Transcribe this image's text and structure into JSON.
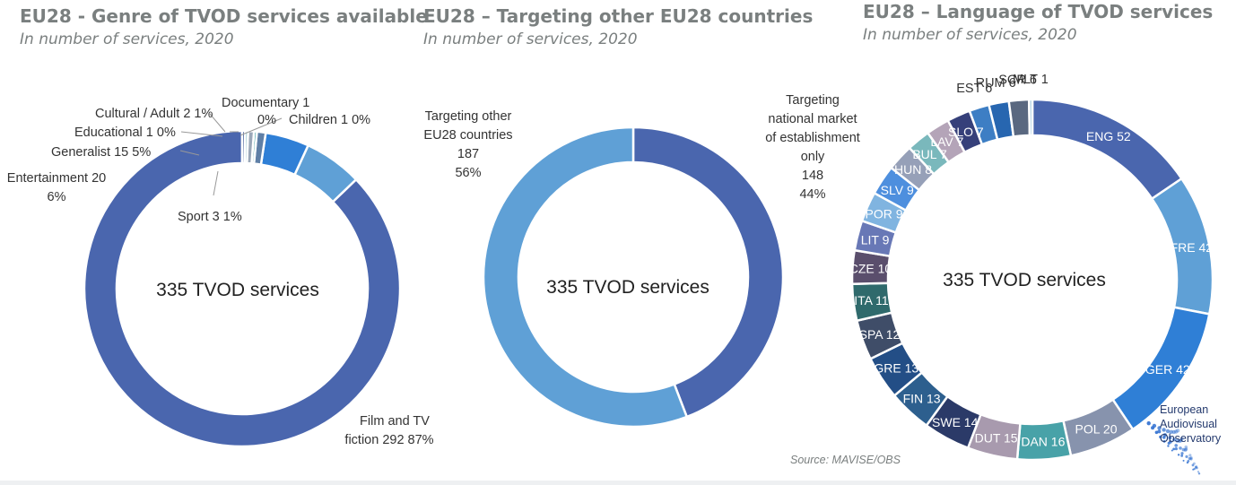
{
  "charts": [
    {
      "title": "EU28 - Genre of TVOD services available",
      "subtitle": "In number of services, 2020",
      "center_label": "335 TVOD services",
      "labels": [
        "Film and TV",
        "fiction 292 87%",
        "Entertainment 20",
        "6%",
        "Generalist 15 5%",
        "Educational 1 0%",
        "Cultural / Adult 2 1%",
        "Documentary 1",
        "0%",
        "Children 1 0%",
        "Sport 3 1%"
      ]
    },
    {
      "title": "EU28 – Targeting other EU28 countries",
      "subtitle": "In number of services, 2020",
      "center_label": "335 TVOD services",
      "labels": [
        "Targeting other",
        "EU28 countries",
        "187",
        "56%",
        "Targeting",
        "national market",
        "of establishment",
        "only",
        "148",
        "44%"
      ]
    },
    {
      "title": "EU28 – Language of TVOD services",
      "subtitle": "In number of services, 2020",
      "center_label": "335 TVOD services"
    }
  ],
  "source": "Source: MAVISE/OBS",
  "logo": {
    "line1": "European",
    "line2": "Audiovisual",
    "line3": "Observatory"
  },
  "chart_data": [
    {
      "type": "pie",
      "title": "EU28 - Genre of TVOD services available",
      "subtitle": "In number of services, 2020",
      "total_label": "335 TVOD services",
      "slices": [
        {
          "name": "Film and TV fiction",
          "value": 292,
          "percent": 87,
          "color": "#4a66ae"
        },
        {
          "name": "Entertainment",
          "value": 20,
          "percent": 6,
          "color": "#5fa0d6"
        },
        {
          "name": "Generalist",
          "value": 15,
          "percent": 5,
          "color": "#2f7fd6"
        },
        {
          "name": "Sport",
          "value": 3,
          "percent": 1,
          "color": "#5f7fa6"
        },
        {
          "name": "Educational",
          "value": 1,
          "percent": 0,
          "color": "#4ba3a8"
        },
        {
          "name": "Cultural / Adult",
          "value": 2,
          "percent": 1,
          "color": "#9aa7b8"
        },
        {
          "name": "Documentary",
          "value": 1,
          "percent": 0,
          "color": "#7fb8c0"
        },
        {
          "name": "Children",
          "value": 1,
          "percent": 0,
          "color": "#2c4a8c"
        }
      ]
    },
    {
      "type": "pie",
      "title": "EU28 – Targeting other EU28 countries",
      "subtitle": "In number of services, 2020",
      "total_label": "335 TVOD services",
      "slices": [
        {
          "name": "Targeting national market of establishment only",
          "value": 148,
          "percent": 44,
          "color": "#4a66ae"
        },
        {
          "name": "Targeting other EU28 countries",
          "value": 187,
          "percent": 56,
          "color": "#5fa0d6"
        }
      ]
    },
    {
      "type": "pie",
      "title": "EU28 – Language of TVOD services",
      "subtitle": "In number of services, 2020",
      "total_label": "335 TVOD services",
      "slices": [
        {
          "name": "ENG",
          "value": 52,
          "color": "#4a66ae"
        },
        {
          "name": "FRE",
          "value": 42,
          "color": "#5fa0d6"
        },
        {
          "name": "GER",
          "value": 42,
          "color": "#2f7fd6"
        },
        {
          "name": "POL",
          "value": 20,
          "color": "#8793ad"
        },
        {
          "name": "DAN",
          "value": 16,
          "color": "#48a2a8"
        },
        {
          "name": "DUT",
          "value": 15,
          "color": "#a89aae"
        },
        {
          "name": "SWE",
          "value": 14,
          "color": "#2b3a68"
        },
        {
          "name": "FIN",
          "value": 13,
          "color": "#2d5f8e"
        },
        {
          "name": "GRE",
          "value": 13,
          "color": "#234e86"
        },
        {
          "name": "SPA",
          "value": 12,
          "color": "#3f4d68"
        },
        {
          "name": "ITA",
          "value": 11,
          "color": "#2f6a6c"
        },
        {
          "name": "CZE",
          "value": 10,
          "color": "#5a4e6c"
        },
        {
          "name": "LIT",
          "value": 9,
          "color": "#6878b6"
        },
        {
          "name": "POR",
          "value": 9,
          "color": "#80b4e0"
        },
        {
          "name": "SLV",
          "value": 9,
          "color": "#4e8fde"
        },
        {
          "name": "HUN",
          "value": 8,
          "color": "#96a0b8"
        },
        {
          "name": "BUL",
          "value": 7,
          "color": "#7ab8bc"
        },
        {
          "name": "LAV",
          "value": 7,
          "color": "#b4a4b8"
        },
        {
          "name": "SLO",
          "value": 7,
          "color": "#36407a"
        },
        {
          "name": "EST",
          "value": 6,
          "color": "#3d7ec4"
        },
        {
          "name": "RUM",
          "value": 6,
          "color": "#2766b0"
        },
        {
          "name": "SCR",
          "value": 6,
          "color": "#5a6880"
        },
        {
          "name": "MLT",
          "value": 1,
          "color": "#a8cce0"
        }
      ]
    }
  ]
}
